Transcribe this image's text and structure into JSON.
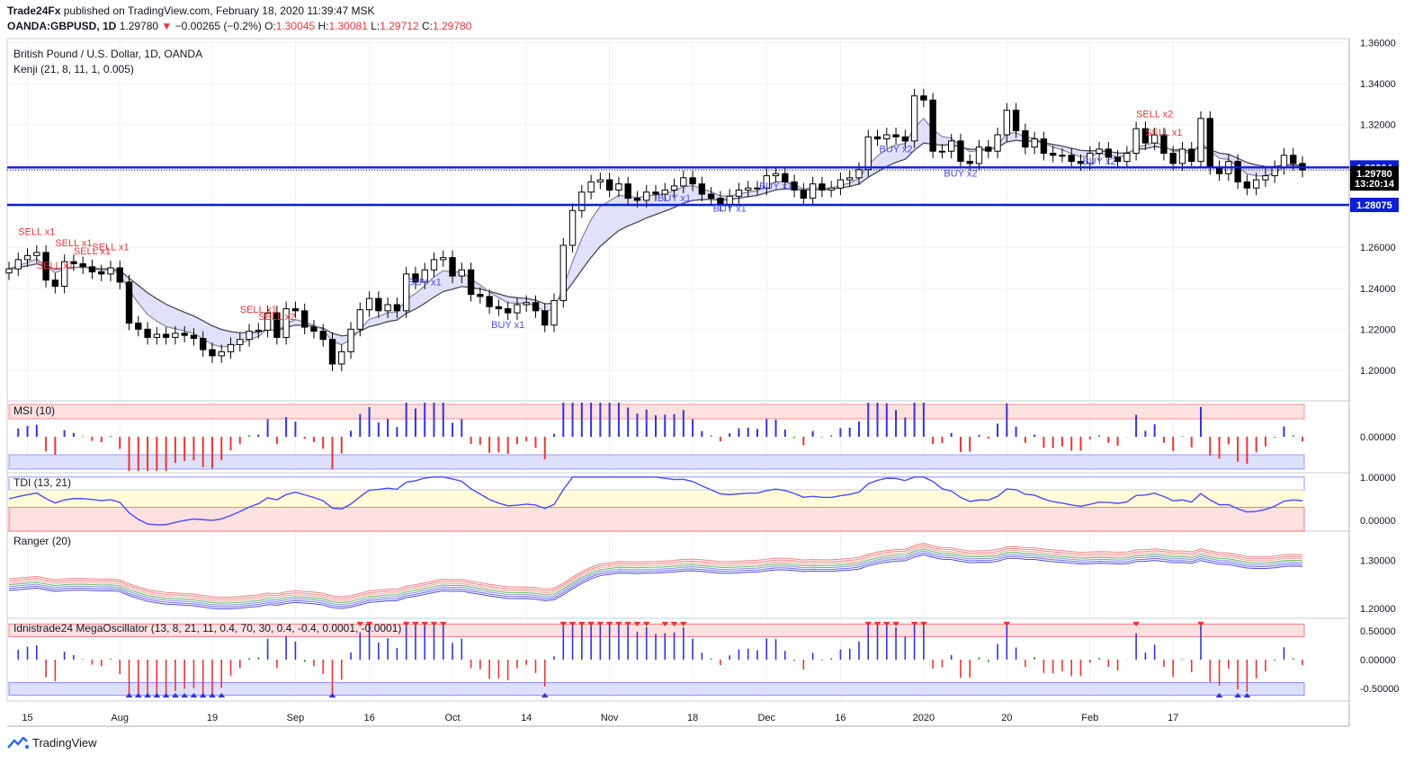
{
  "header": {
    "publisher": "Trade24Fx",
    "published_text": "published on TradingView.com, February 18, 2020 11:39:47 MSK",
    "symbol": "OANDA:GBPUSD, 1D",
    "last": "1.29780",
    "change": "−0.00265 (−0.2%)",
    "o_label": "O:",
    "o": "1.30045",
    "h_label": "H:",
    "h": "1.30081",
    "l_label": "L:",
    "l": "1.29712",
    "c_label": "C:",
    "c": "1.29780"
  },
  "brand": "TradingView",
  "colors": {
    "up": "#ffffff",
    "down": "#000000",
    "line_blue": "#0b1fd6",
    "sell": "#ef3434",
    "buy": "#4a4aff",
    "band_red": "#fde0e0",
    "band_blue": "#dde0fb",
    "tdi_band": "#fffbd8"
  },
  "chart_data": [
    {
      "type": "candlestick",
      "title": "British Pound / U.S. Dollar, 1D, OANDA",
      "indicator_label": "Kenji (21, 8, 11, 1, 0.005)",
      "ylim": [
        1.185,
        1.362
      ],
      "y_ticks": [
        "1.36000",
        "1.34000",
        "1.32000",
        "1.30000",
        "1.28000",
        "1.26000",
        "1.24000",
        "1.22000",
        "1.20000"
      ],
      "x_ticks": [
        "15",
        "Aug",
        "19",
        "Sep",
        "16",
        "Oct",
        "14",
        "Nov",
        "18",
        "Dec",
        "16",
        "2020",
        "20",
        "Feb",
        "17"
      ],
      "x_tick_index": [
        2,
        12,
        22,
        31,
        39,
        48,
        56,
        65,
        74,
        82,
        90,
        99,
        108,
        117,
        126
      ],
      "horizontal_lines": [
        1.29904,
        1.28075
      ],
      "price_labels": {
        "level_top": "1.29904",
        "last": "1.29780",
        "countdown": "13:20:14",
        "level_bottom": "1.28075"
      },
      "close": [
        1.2495,
        1.254,
        1.256,
        1.2575,
        1.244,
        1.241,
        1.253,
        1.252,
        1.2505,
        1.248,
        1.247,
        1.25,
        1.243,
        1.223,
        1.22,
        1.216,
        1.2175,
        1.216,
        1.218,
        1.217,
        1.2155,
        1.21,
        1.207,
        1.209,
        1.2125,
        1.215,
        1.219,
        1.2195,
        1.228,
        1.216,
        1.23,
        1.229,
        1.221,
        1.219,
        1.215,
        1.203,
        1.209,
        1.22,
        1.2295,
        1.235,
        1.229,
        1.232,
        1.229,
        1.247,
        1.243,
        1.249,
        1.254,
        1.255,
        1.246,
        1.249,
        1.237,
        1.236,
        1.231,
        1.23,
        1.228,
        1.232,
        1.233,
        1.229,
        1.222,
        1.234,
        1.261,
        1.278,
        1.287,
        1.292,
        1.293,
        1.288,
        1.291,
        1.284,
        1.283,
        1.287,
        1.286,
        1.288,
        1.29,
        1.294,
        1.291,
        1.286,
        1.284,
        1.281,
        1.285,
        1.288,
        1.289,
        1.289,
        1.295,
        1.296,
        1.292,
        1.288,
        1.284,
        1.291,
        1.288,
        1.289,
        1.293,
        1.294,
        1.298,
        1.314,
        1.313,
        1.315,
        1.314,
        1.312,
        1.334,
        1.332,
        1.307,
        1.307,
        1.312,
        1.302,
        1.301,
        1.309,
        1.307,
        1.315,
        1.327,
        1.317,
        1.309,
        1.313,
        1.306,
        1.305,
        1.305,
        1.302,
        1.301,
        1.306,
        1.308,
        1.304,
        1.302,
        1.306,
        1.318,
        1.311,
        1.315,
        1.306,
        1.301,
        1.308,
        1.302,
        1.323,
        1.299,
        1.296,
        1.302,
        1.292,
        1.289,
        1.293,
        1.295,
        1.299,
        1.305,
        1.301,
        1.2978
      ],
      "sell_signals": [
        "SELL x1",
        "SELL x1",
        "SELL x1",
        "SELL x1",
        "SELL x1",
        "SELL x1",
        "SELL x2",
        "SELL x2",
        "SELL x1"
      ],
      "buy_signals": [
        "BUY x1",
        "BUY x1",
        "BUY x1",
        "BUY x1",
        "BUY x1",
        "BUY x2",
        "BUY x2",
        "BUY x2"
      ]
    },
    {
      "type": "bar",
      "title": "MSI (10)",
      "ylim": [
        -1,
        1
      ],
      "y_ticks": [
        "0.00000"
      ]
    },
    {
      "type": "line",
      "title": "TDI (13, 21)",
      "ylim": [
        -0.25,
        1.1
      ],
      "y_ticks": [
        "1.00000",
        "0.00000"
      ]
    },
    {
      "type": "line",
      "title": "Ranger (20)",
      "ylim": [
        1.18,
        1.36
      ],
      "y_ticks": [
        "1.30000",
        "1.20000"
      ]
    },
    {
      "type": "bar",
      "title": "Idnistrade24 MegaOscillator (13, 8, 21, 11, 0.4, 70, 30, 0.4, -0.4, 0.0001, -0.0001)",
      "ylim": [
        -0.72,
        0.72
      ],
      "y_ticks": [
        "0.50000",
        "0.00000",
        "-0.50000"
      ]
    }
  ]
}
